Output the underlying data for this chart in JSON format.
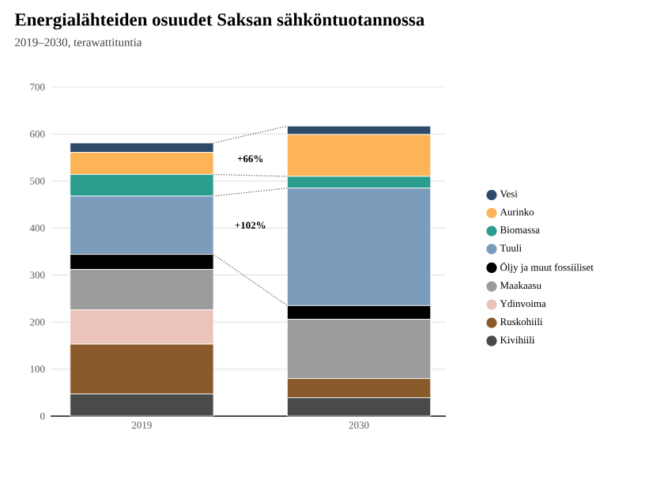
{
  "chart_data": {
    "type": "bar",
    "stacked": true,
    "title": "Energialähteiden osuudet Saksan sähköntuotannossa",
    "subtitle": "2019–2030, terawattituntia",
    "categories": [
      "2019",
      "2030"
    ],
    "series": [
      {
        "name": "Kivihiili",
        "color": "#4a4a4a",
        "values": [
          47,
          39
        ]
      },
      {
        "name": "Ruskohiili",
        "color": "#8b5a2b",
        "values": [
          106,
          41
        ]
      },
      {
        "name": "Ydinvoima",
        "color": "#ebc3b9",
        "values": [
          73,
          0
        ]
      },
      {
        "name": "Maakaasu",
        "color": "#9b9b9b",
        "values": [
          86,
          126
        ]
      },
      {
        "name": "Öljy ja muut fossiiliset",
        "color": "#000000",
        "values": [
          32,
          29
        ]
      },
      {
        "name": "Tuuli",
        "color": "#7b9dbb",
        "values": [
          124,
          250
        ]
      },
      {
        "name": "Biomassa",
        "color": "#2a9d8f",
        "values": [
          46,
          25
        ]
      },
      {
        "name": "Aurinko",
        "color": "#fdb358",
        "values": [
          47,
          89
        ]
      },
      {
        "name": "Vesi",
        "color": "#2d4a6b",
        "values": [
          20,
          18
        ]
      }
    ],
    "ylim": [
      0,
      700
    ],
    "yticks": [
      0,
      100,
      200,
      300,
      400,
      500,
      600,
      700
    ],
    "grid": "y",
    "legend": "right",
    "annotations": [
      "+66%",
      "+102%"
    ]
  }
}
